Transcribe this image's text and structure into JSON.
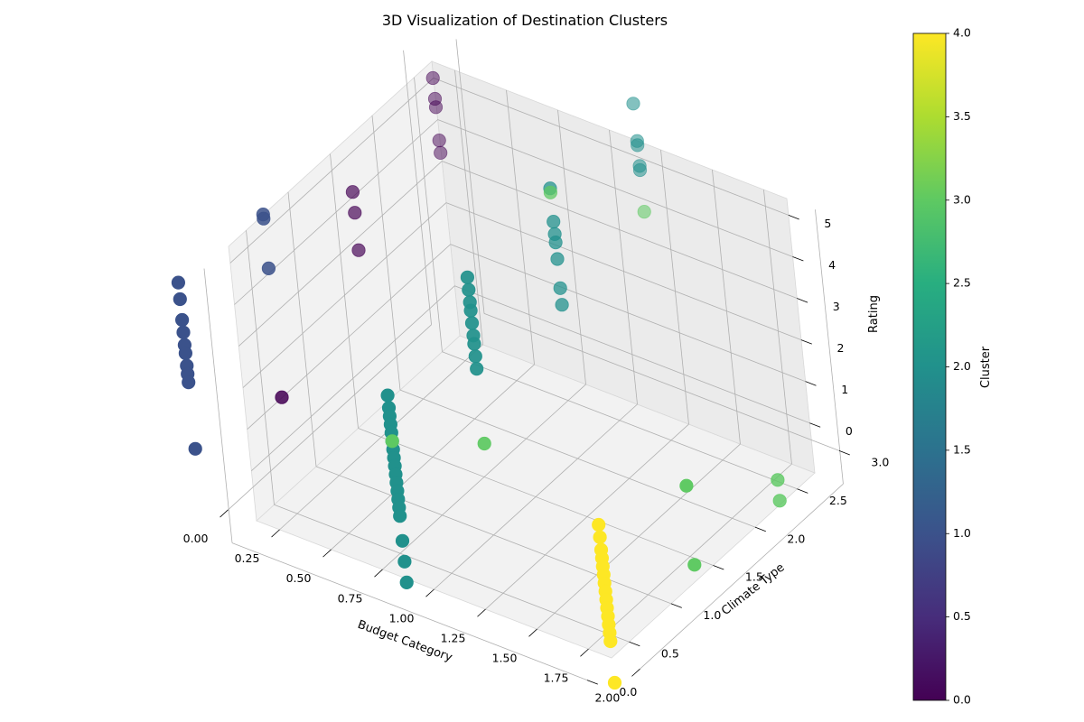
{
  "chart_data": {
    "type": "scatter",
    "projection": "3d",
    "title": "3D Visualization of Destination Clusters",
    "xlabel": "Budget Category",
    "ylabel": "Climate Type",
    "zlabel": "Rating",
    "xlim": [
      0,
      2
    ],
    "ylim": [
      0,
      3
    ],
    "zlim": [
      0,
      5
    ],
    "x_ticks": [
      "0.00",
      "0.25",
      "0.50",
      "0.75",
      "1.00",
      "1.25",
      "1.50",
      "1.75",
      "2.00"
    ],
    "y_ticks": [
      "0.0",
      "0.5",
      "1.0",
      "1.5",
      "2.0",
      "2.5",
      "3.0"
    ],
    "z_ticks": [
      "0",
      "1",
      "2",
      "3",
      "4",
      "5"
    ],
    "grid": true,
    "colorbar": {
      "label": "Cluster",
      "colormap": "viridis",
      "range": [
        0,
        4
      ],
      "ticks": [
        "0.0",
        "0.5",
        "1.0",
        "1.5",
        "2.0",
        "2.5",
        "3.0",
        "3.5",
        "4.0"
      ]
    },
    "clusters": [
      0,
      1,
      2,
      3,
      4
    ],
    "points": [
      {
        "x": 0,
        "y": 3,
        "z": 4.2,
        "cluster": 0
      },
      {
        "x": 0,
        "y": 3,
        "z": 3.7,
        "cluster": 0
      },
      {
        "x": 0,
        "y": 3,
        "z": 3.5,
        "cluster": 0
      },
      {
        "x": 0,
        "y": 3,
        "z": 2.7,
        "cluster": 0
      },
      {
        "x": 0,
        "y": 3,
        "z": 2.4,
        "cluster": 0
      },
      {
        "x": 0,
        "y": 2,
        "z": 3.3,
        "cluster": 0
      },
      {
        "x": 0,
        "y": 2,
        "z": 2.8,
        "cluster": 0
      },
      {
        "x": 0,
        "y": 2,
        "z": 1.9,
        "cluster": 0
      },
      {
        "x": 0,
        "y": 1,
        "z": 0.2,
        "cluster": 0
      },
      {
        "x": 0,
        "y": 0,
        "z": 4.8,
        "cluster": 1
      },
      {
        "x": 0,
        "y": 0,
        "z": 4.4,
        "cluster": 1
      },
      {
        "x": 0,
        "y": 0,
        "z": 3.9,
        "cluster": 1
      },
      {
        "x": 0,
        "y": 0,
        "z": 3.6,
        "cluster": 1
      },
      {
        "x": 0,
        "y": 0,
        "z": 3.3,
        "cluster": 1
      },
      {
        "x": 0,
        "y": 0,
        "z": 3.1,
        "cluster": 1
      },
      {
        "x": 0,
        "y": 0,
        "z": 2.8,
        "cluster": 1
      },
      {
        "x": 0,
        "y": 0,
        "z": 2.6,
        "cluster": 1
      },
      {
        "x": 0,
        "y": 0,
        "z": 2.4,
        "cluster": 1
      },
      {
        "x": 0,
        "y": 0,
        "z": 0.8,
        "cluster": 1
      },
      {
        "x": 0,
        "y": 1,
        "z": 4.6,
        "cluster": 1
      },
      {
        "x": 0,
        "y": 1,
        "z": 4.5,
        "cluster": 1
      },
      {
        "x": 0,
        "y": 1,
        "z": 3.3,
        "cluster": 1
      },
      {
        "x": 1,
        "y": 0,
        "z": 4.0,
        "cluster": 2
      },
      {
        "x": 1,
        "y": 0,
        "z": 3.7,
        "cluster": 2
      },
      {
        "x": 1,
        "y": 0,
        "z": 3.5,
        "cluster": 2
      },
      {
        "x": 1,
        "y": 0,
        "z": 3.3,
        "cluster": 2
      },
      {
        "x": 1,
        "y": 0,
        "z": 3.1,
        "cluster": 2
      },
      {
        "x": 1,
        "y": 0,
        "z": 2.9,
        "cluster": 2
      },
      {
        "x": 1,
        "y": 0,
        "z": 2.7,
        "cluster": 2
      },
      {
        "x": 1,
        "y": 0,
        "z": 2.5,
        "cluster": 2
      },
      {
        "x": 1,
        "y": 0,
        "z": 2.3,
        "cluster": 2
      },
      {
        "x": 1,
        "y": 0,
        "z": 2.1,
        "cluster": 2
      },
      {
        "x": 1,
        "y": 0,
        "z": 1.9,
        "cluster": 2
      },
      {
        "x": 1,
        "y": 0,
        "z": 1.7,
        "cluster": 2
      },
      {
        "x": 1,
        "y": 0,
        "z": 1.5,
        "cluster": 2
      },
      {
        "x": 1,
        "y": 0,
        "z": 1.3,
        "cluster": 2
      },
      {
        "x": 1,
        "y": 0,
        "z": 1.1,
        "cluster": 2
      },
      {
        "x": 1,
        "y": 0,
        "z": 0.5,
        "cluster": 2
      },
      {
        "x": 1,
        "y": 0,
        "z": 0.0,
        "cluster": 2
      },
      {
        "x": 1,
        "y": 0,
        "z": -0.5,
        "cluster": 2
      },
      {
        "x": 1,
        "y": 1,
        "z": 5.0,
        "cluster": 2
      },
      {
        "x": 1,
        "y": 1,
        "z": 4.7,
        "cluster": 2
      },
      {
        "x": 1,
        "y": 1,
        "z": 4.4,
        "cluster": 2
      },
      {
        "x": 1,
        "y": 1,
        "z": 4.2,
        "cluster": 2
      },
      {
        "x": 1,
        "y": 1,
        "z": 3.9,
        "cluster": 2
      },
      {
        "x": 1,
        "y": 1,
        "z": 3.6,
        "cluster": 2
      },
      {
        "x": 1,
        "y": 1,
        "z": 3.4,
        "cluster": 2
      },
      {
        "x": 1,
        "y": 1,
        "z": 3.1,
        "cluster": 2
      },
      {
        "x": 1,
        "y": 1,
        "z": 2.8,
        "cluster": 2
      },
      {
        "x": 1,
        "y": 2,
        "z": 5.3,
        "cluster": 2
      },
      {
        "x": 1,
        "y": 2,
        "z": 4.5,
        "cluster": 2
      },
      {
        "x": 1,
        "y": 2,
        "z": 4.2,
        "cluster": 2
      },
      {
        "x": 1,
        "y": 2,
        "z": 4.0,
        "cluster": 2
      },
      {
        "x": 1,
        "y": 2,
        "z": 3.6,
        "cluster": 2
      },
      {
        "x": 1,
        "y": 2,
        "z": 2.9,
        "cluster": 2
      },
      {
        "x": 1,
        "y": 2,
        "z": 2.5,
        "cluster": 2
      },
      {
        "x": 1,
        "y": 3,
        "z": 5.5,
        "cluster": 2
      },
      {
        "x": 1,
        "y": 3,
        "z": 4.6,
        "cluster": 2
      },
      {
        "x": 1,
        "y": 3,
        "z": 4.5,
        "cluster": 2
      },
      {
        "x": 1,
        "y": 3,
        "z": 4.0,
        "cluster": 2
      },
      {
        "x": 1,
        "y": 3,
        "z": 3.9,
        "cluster": 2
      },
      {
        "x": 1,
        "y": 0,
        "z": 2.9,
        "cluster": 3
      },
      {
        "x": 1,
        "y": 1,
        "z": 1.0,
        "cluster": 3
      },
      {
        "x": 1,
        "y": 2,
        "z": 5.2,
        "cluster": 3
      },
      {
        "x": 1,
        "y": 3,
        "z": 2.9,
        "cluster": 3
      },
      {
        "x": 2,
        "y": 1,
        "z": 0.0,
        "cluster": 3
      },
      {
        "x": 2,
        "y": 2,
        "z": 0.2,
        "cluster": 3
      },
      {
        "x": 2,
        "y": 2,
        "z": -0.3,
        "cluster": 3
      },
      {
        "x": 2,
        "y": 1,
        "z": 1.9,
        "cluster": 3
      },
      {
        "x": 2,
        "y": 0,
        "z": 2.8,
        "cluster": 4
      },
      {
        "x": 2,
        "y": 0,
        "z": 2.5,
        "cluster": 4
      },
      {
        "x": 2,
        "y": 0,
        "z": 2.2,
        "cluster": 4
      },
      {
        "x": 2,
        "y": 0,
        "z": 2.0,
        "cluster": 4
      },
      {
        "x": 2,
        "y": 0,
        "z": 1.8,
        "cluster": 4
      },
      {
        "x": 2,
        "y": 0,
        "z": 1.6,
        "cluster": 4
      },
      {
        "x": 2,
        "y": 0,
        "z": 1.4,
        "cluster": 4
      },
      {
        "x": 2,
        "y": 0,
        "z": 1.2,
        "cluster": 4
      },
      {
        "x": 2,
        "y": 0,
        "z": 1.0,
        "cluster": 4
      },
      {
        "x": 2,
        "y": 0,
        "z": 0.8,
        "cluster": 4
      },
      {
        "x": 2,
        "y": 0,
        "z": 0.6,
        "cluster": 4
      },
      {
        "x": 2,
        "y": 0,
        "z": 0.4,
        "cluster": 4
      },
      {
        "x": 2,
        "y": 0,
        "z": 0.2,
        "cluster": 4
      },
      {
        "x": 2,
        "y": 0,
        "z": 0.0,
        "cluster": 4
      },
      {
        "x": 2,
        "y": 0,
        "z": -1.0,
        "cluster": 4
      }
    ]
  }
}
